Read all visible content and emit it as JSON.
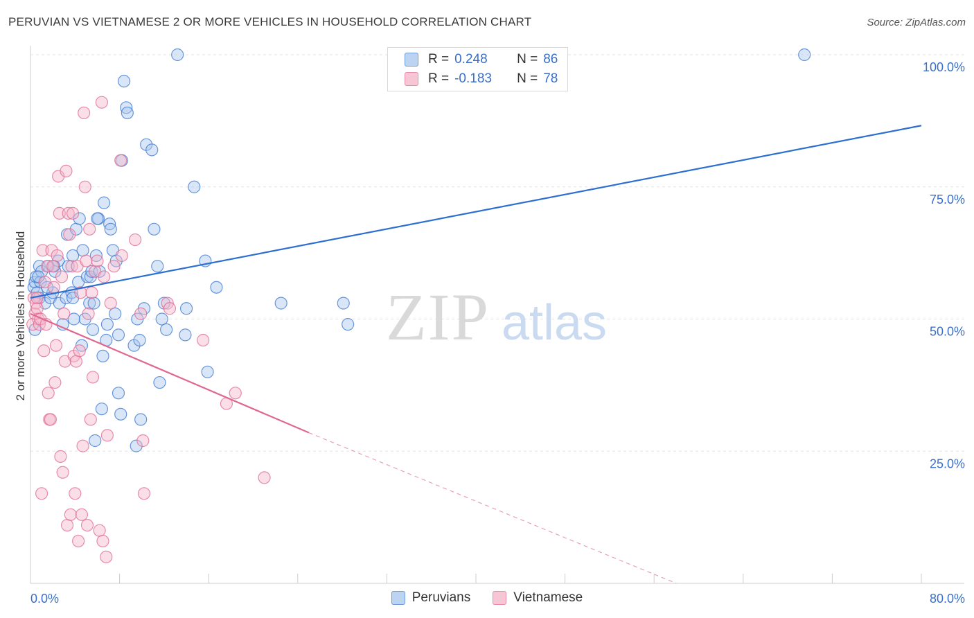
{
  "title": "PERUVIAN VS VIETNAMESE 2 OR MORE VEHICLES IN HOUSEHOLD CORRELATION CHART",
  "source": "Source: ZipAtlas.com",
  "watermark": {
    "zip": "ZIP",
    "atlas": "atlas"
  },
  "legend": {
    "rows": [
      {
        "r_label": "R =",
        "r_value": "0.248",
        "n_label": "N =",
        "n_value": "86",
        "color": "#6b9bd8",
        "fill": "#bcd3f2"
      },
      {
        "r_label": "R =",
        "r_value": "-0.183",
        "n_label": "N =",
        "n_value": "78",
        "color": "#e88aa8",
        "fill": "#f7c6d5"
      }
    ]
  },
  "bottom_legend": {
    "peruvians": "Peruvians",
    "vietnamese": "Vietnamese"
  },
  "chart_data": {
    "type": "scatter",
    "title": "PERUVIAN VS VIETNAMESE 2 OR MORE VEHICLES IN HOUSEHOLD CORRELATION CHART",
    "xlabel": "",
    "ylabel": "2 or more Vehicles in Household",
    "xlim": [
      0,
      80
    ],
    "ylim": [
      0,
      100
    ],
    "x_tick_labels": {
      "min": "0.0%",
      "max": "80.0%"
    },
    "y_tick_labels": [
      "25.0%",
      "50.0%",
      "75.0%",
      "100.0%"
    ],
    "y_ticks": [
      25,
      50,
      75,
      100
    ],
    "series": [
      {
        "name": "Peruvians",
        "color": "#3a76d0",
        "fill": "#aac7ee",
        "trend": {
          "x0": 0,
          "y0": 54.0,
          "x1": 80,
          "y1": 86.6,
          "dashed_after": null
        },
        "points": [
          [
            0.3,
            56
          ],
          [
            0.4,
            57
          ],
          [
            0.5,
            58
          ],
          [
            0.6,
            55
          ],
          [
            0.8,
            54
          ],
          [
            0.8,
            60
          ],
          [
            0.9,
            57
          ],
          [
            1.0,
            59
          ],
          [
            1.3,
            53
          ],
          [
            1.6,
            60
          ],
          [
            1.8,
            54
          ],
          [
            2.0,
            55
          ],
          [
            2.2,
            59
          ],
          [
            2.5,
            61
          ],
          [
            2.6,
            53
          ],
          [
            2.9,
            49
          ],
          [
            3.2,
            54
          ],
          [
            3.3,
            66
          ],
          [
            3.7,
            55
          ],
          [
            3.8,
            54
          ],
          [
            3.8,
            62
          ],
          [
            3.9,
            50
          ],
          [
            4.1,
            67
          ],
          [
            4.3,
            57
          ],
          [
            4.4,
            69
          ],
          [
            4.6,
            45
          ],
          [
            4.7,
            63
          ],
          [
            4.9,
            50
          ],
          [
            5.1,
            58
          ],
          [
            5.3,
            53
          ],
          [
            5.4,
            58
          ],
          [
            5.5,
            59
          ],
          [
            5.6,
            48
          ],
          [
            5.7,
            53
          ],
          [
            5.8,
            27
          ],
          [
            5.9,
            62
          ],
          [
            6.1,
            69
          ],
          [
            6.2,
            59
          ],
          [
            6.4,
            33
          ],
          [
            6.5,
            43
          ],
          [
            6.6,
            72
          ],
          [
            6.8,
            46
          ],
          [
            6.9,
            49
          ],
          [
            7.1,
            68
          ],
          [
            7.2,
            67
          ],
          [
            7.4,
            63
          ],
          [
            7.6,
            51
          ],
          [
            7.7,
            61
          ],
          [
            7.9,
            36
          ],
          [
            7.9,
            47
          ],
          [
            8.1,
            32
          ],
          [
            8.2,
            80
          ],
          [
            8.4,
            95
          ],
          [
            8.6,
            90
          ],
          [
            8.7,
            89
          ],
          [
            9.3,
            45
          ],
          [
            9.5,
            26
          ],
          [
            9.6,
            50
          ],
          [
            9.8,
            46
          ],
          [
            9.9,
            31
          ],
          [
            10.2,
            52
          ],
          [
            10.4,
            83
          ],
          [
            10.9,
            82
          ],
          [
            11.1,
            67
          ],
          [
            11.4,
            60
          ],
          [
            11.6,
            38
          ],
          [
            11.8,
            50
          ],
          [
            12.0,
            53
          ],
          [
            12.2,
            48
          ],
          [
            13.2,
            100
          ],
          [
            13.9,
            47
          ],
          [
            14.0,
            52
          ],
          [
            14.7,
            75
          ],
          [
            15.9,
            40
          ],
          [
            15.7,
            61
          ],
          [
            16.7,
            56
          ],
          [
            22.5,
            53
          ],
          [
            28.1,
            53
          ],
          [
            28.5,
            49
          ],
          [
            69.5,
            100
          ],
          [
            0.4,
            48
          ],
          [
            2.1,
            60
          ],
          [
            1.5,
            56
          ],
          [
            0.7,
            58
          ],
          [
            3.4,
            60
          ],
          [
            6.0,
            69
          ]
        ]
      },
      {
        "name": "Vietnamese",
        "color": "#e06890",
        "fill": "#f4b8cc",
        "trend": {
          "x0": 0,
          "y0": 51.0,
          "x1": 25,
          "y1": 28.5,
          "x_end": 58,
          "y_end": 0,
          "dashed_after": 25
        },
        "points": [
          [
            0.2,
            49
          ],
          [
            0.3,
            54
          ],
          [
            0.4,
            51
          ],
          [
            0.5,
            53
          ],
          [
            0.6,
            52
          ],
          [
            0.7,
            50
          ],
          [
            0.8,
            49
          ],
          [
            0.9,
            50
          ],
          [
            1.0,
            17
          ],
          [
            1.1,
            63
          ],
          [
            1.2,
            44
          ],
          [
            1.3,
            57
          ],
          [
            1.4,
            49
          ],
          [
            1.5,
            60
          ],
          [
            1.6,
            36
          ],
          [
            1.7,
            31
          ],
          [
            1.8,
            31
          ],
          [
            1.9,
            63
          ],
          [
            2.0,
            60
          ],
          [
            2.1,
            56
          ],
          [
            2.2,
            38
          ],
          [
            2.3,
            45
          ],
          [
            2.4,
            62
          ],
          [
            2.5,
            77
          ],
          [
            2.6,
            70
          ],
          [
            2.7,
            24
          ],
          [
            2.8,
            58
          ],
          [
            2.9,
            21
          ],
          [
            3.0,
            51
          ],
          [
            3.1,
            42
          ],
          [
            3.2,
            78
          ],
          [
            3.3,
            11
          ],
          [
            3.4,
            70
          ],
          [
            3.5,
            66
          ],
          [
            3.6,
            13
          ],
          [
            3.7,
            60
          ],
          [
            3.8,
            70
          ],
          [
            3.9,
            43
          ],
          [
            4.0,
            17
          ],
          [
            4.1,
            42
          ],
          [
            4.2,
            60
          ],
          [
            4.3,
            8
          ],
          [
            4.4,
            44
          ],
          [
            4.5,
            55
          ],
          [
            4.6,
            13
          ],
          [
            4.7,
            26
          ],
          [
            4.8,
            89
          ],
          [
            4.9,
            75
          ],
          [
            5.0,
            61
          ],
          [
            5.1,
            11
          ],
          [
            5.2,
            51
          ],
          [
            5.3,
            67
          ],
          [
            5.4,
            31
          ],
          [
            5.5,
            55
          ],
          [
            5.6,
            39
          ],
          [
            5.8,
            59
          ],
          [
            6.0,
            61
          ],
          [
            6.2,
            10
          ],
          [
            6.4,
            91
          ],
          [
            6.5,
            8
          ],
          [
            6.6,
            58
          ],
          [
            6.8,
            5
          ],
          [
            6.9,
            28
          ],
          [
            7.2,
            53
          ],
          [
            7.5,
            60
          ],
          [
            8.1,
            80
          ],
          [
            8.2,
            62
          ],
          [
            9.4,
            65
          ],
          [
            9.9,
            51
          ],
          [
            10.1,
            27
          ],
          [
            10.2,
            17
          ],
          [
            12.3,
            53
          ],
          [
            12.5,
            52
          ],
          [
            15.5,
            46
          ],
          [
            17.6,
            34
          ],
          [
            18.4,
            36
          ],
          [
            21.0,
            20
          ],
          [
            0.6,
            54
          ]
        ]
      }
    ]
  }
}
